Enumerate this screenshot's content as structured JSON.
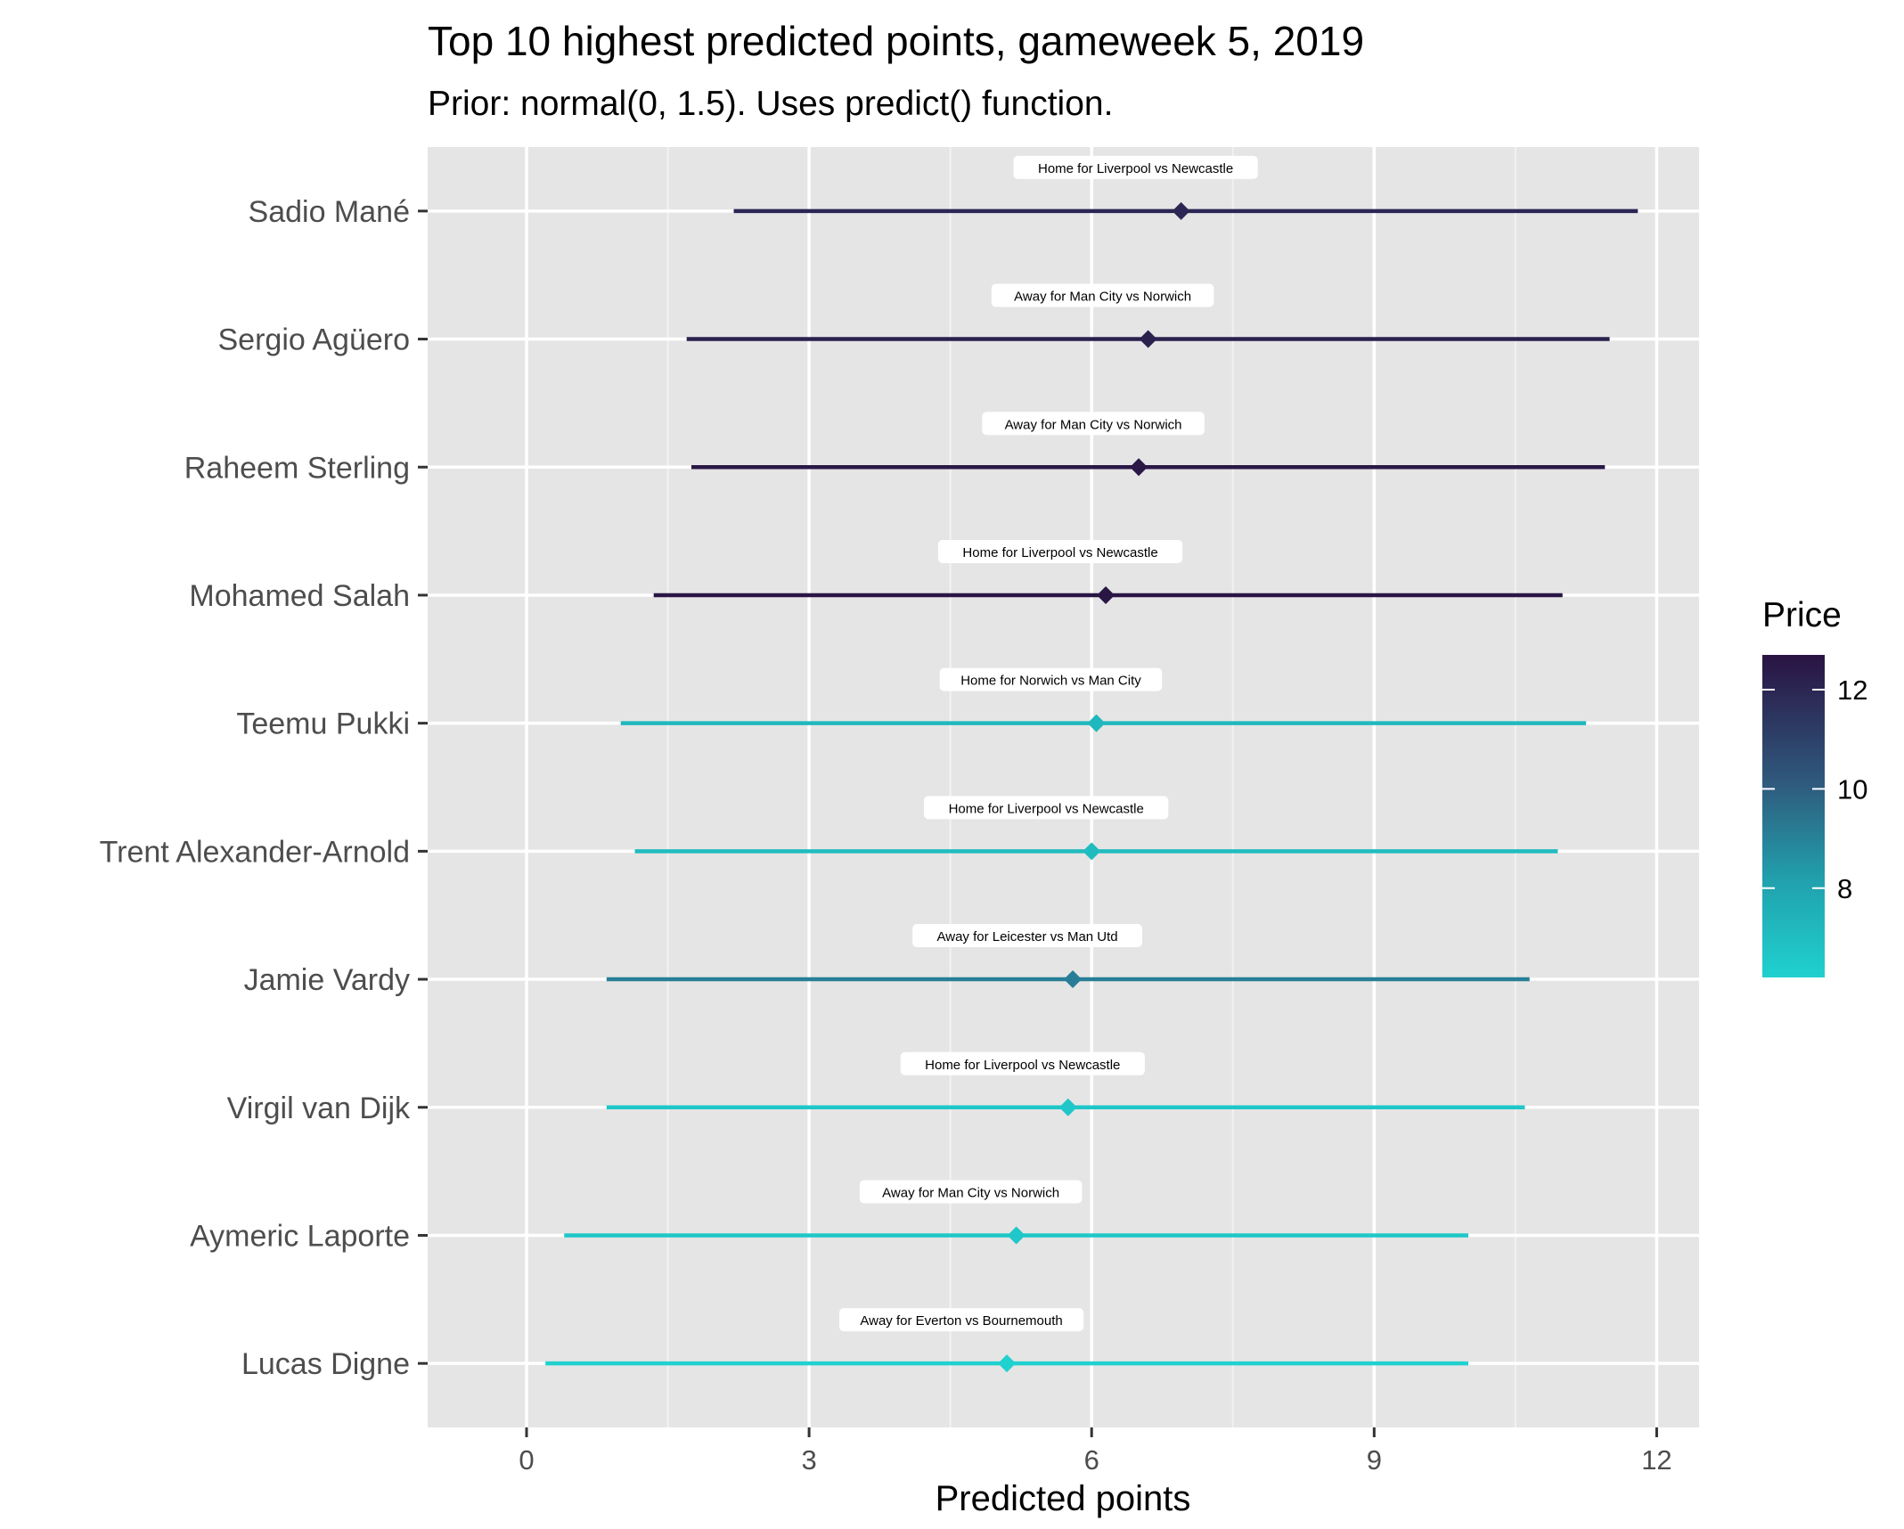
{
  "chart_data": {
    "type": "scatter",
    "title": "Top 10 highest predicted points, gameweek 5, 2019",
    "subtitle": "Prior: normal(0, 1.5). Uses predict() function.",
    "xlabel": "Predicted points",
    "ylabel": "",
    "xlim": [
      -1.05,
      12.45
    ],
    "xticks": [
      0,
      3,
      6,
      9,
      12
    ],
    "grid": true,
    "legend": {
      "title": "Price",
      "position": "right",
      "min": 6.2,
      "max": 12.7,
      "ticks": [
        8,
        10,
        12
      ],
      "color_low": "#1fd1cf",
      "color_high": "#2a1343"
    },
    "points": [
      {
        "player": "Sadio Mané",
        "estimate": 6.95,
        "lower": 2.2,
        "upper": 11.8,
        "price": 12.0,
        "label": "Home for Liverpool vs Newcastle"
      },
      {
        "player": "Sergio Agüero",
        "estimate": 6.6,
        "lower": 1.7,
        "upper": 11.5,
        "price": 12.2,
        "label": "Away for Man City vs Norwich"
      },
      {
        "player": "Raheem Sterling",
        "estimate": 6.5,
        "lower": 1.75,
        "upper": 11.45,
        "price": 12.5,
        "label": "Away for Man City vs Norwich"
      },
      {
        "player": "Mohamed Salah",
        "estimate": 6.15,
        "lower": 1.35,
        "upper": 11.0,
        "price": 12.6,
        "label": "Home for Liverpool vs Newcastle"
      },
      {
        "player": "Teemu Pukki",
        "estimate": 6.05,
        "lower": 1.0,
        "upper": 11.25,
        "price": 7.2,
        "label": "Home for Norwich vs Man City"
      },
      {
        "player": "Trent Alexander-Arnold",
        "estimate": 6.0,
        "lower": 1.15,
        "upper": 10.95,
        "price": 7.1,
        "label": "Home for Liverpool vs Newcastle"
      },
      {
        "player": "Jamie Vardy",
        "estimate": 5.8,
        "lower": 0.85,
        "upper": 10.65,
        "price": 9.1,
        "label": "Away for Leicester vs Man Utd"
      },
      {
        "player": "Virgil van Dijk",
        "estimate": 5.75,
        "lower": 0.85,
        "upper": 10.6,
        "price": 6.6,
        "label": "Home for Liverpool vs Newcastle"
      },
      {
        "player": "Aymeric Laporte",
        "estimate": 5.2,
        "lower": 0.4,
        "upper": 10.0,
        "price": 6.6,
        "label": "Away for Man City vs Norwich"
      },
      {
        "player": "Lucas Digne",
        "estimate": 5.1,
        "lower": 0.2,
        "upper": 10.0,
        "price": 6.2,
        "label": "Away for Everton vs Bournemouth"
      }
    ]
  }
}
